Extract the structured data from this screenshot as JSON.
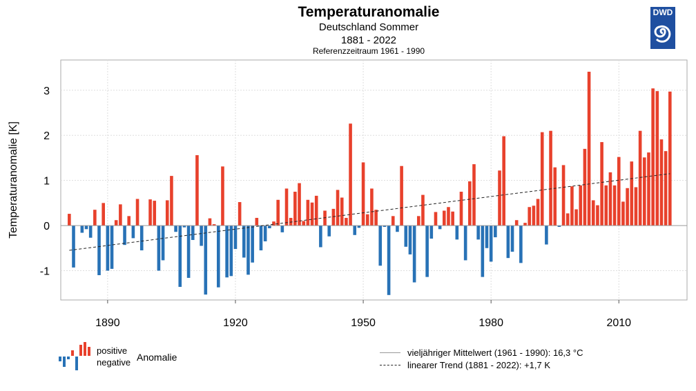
{
  "chart_data": {
    "type": "bar",
    "title": "Temperaturanomalie",
    "subtitle": [
      "Deutschland Sommer",
      "1881 - 2022",
      "Referenzzeitraum 1961 - 1990"
    ],
    "xlabel": "",
    "ylabel": "Temperaturanomalie [K]",
    "xlim": [
      1879,
      2026
    ],
    "ylim": [
      -1.65,
      3.67
    ],
    "xticks": [
      1890,
      1920,
      1950,
      1980,
      2010
    ],
    "yticks": [
      -1,
      0,
      1,
      2,
      3
    ],
    "grid": true,
    "x_start": 1881,
    "values": [
      0.26,
      -0.93,
      0,
      -0.16,
      -0.08,
      -0.27,
      0.35,
      -1.1,
      0.5,
      -1.0,
      -0.96,
      0.12,
      0.47,
      -0.43,
      0.21,
      -0.28,
      0.59,
      -0.55,
      0,
      0.58,
      0.55,
      -1.0,
      -0.77,
      0.56,
      1.1,
      -0.14,
      -1.36,
      -0.04,
      -1.16,
      -0.32,
      1.56,
      -0.45,
      -1.53,
      0.16,
      0.03,
      -1.37,
      1.31,
      -1.15,
      -1.12,
      -0.52,
      0.52,
      -0.71,
      -1.09,
      -0.82,
      0.17,
      -0.55,
      -0.35,
      -0.06,
      0.09,
      0.57,
      -0.15,
      0.82,
      0.17,
      0.75,
      0.94,
      0.1,
      0.57,
      0.51,
      0.66,
      -0.48,
      0.33,
      -0.24,
      0.37,
      0.79,
      0.62,
      0.17,
      2.26,
      -0.21,
      -0.05,
      1.4,
      0.25,
      0.82,
      0.35,
      -0.89,
      -0.03,
      -1.54,
      0.21,
      -0.14,
      1.32,
      -0.47,
      -0.64,
      -1.26,
      0.21,
      0.68,
      -1.14,
      -0.29,
      0.3,
      -0.08,
      0.33,
      0.41,
      0.31,
      -0.31,
      0.75,
      -0.77,
      0.98,
      1.36,
      -0.31,
      -1.14,
      -0.5,
      -0.8,
      -0.26,
      1.22,
      1.98,
      -0.72,
      -0.58,
      0.12,
      -0.83,
      0.06,
      0.41,
      0.44,
      0.59,
      2.07,
      -0.42,
      2.1,
      1.29,
      -0.03,
      1.34,
      0.27,
      0.87,
      0.36,
      0.89,
      1.7,
      3.41,
      0.56,
      0.45,
      1.85,
      0.89,
      1.18,
      0.89,
      1.52,
      0.53,
      0.83,
      1.42,
      0.85,
      2.1,
      1.51,
      1.62,
      3.04,
      2.98,
      1.91,
      1.65,
      2.97
    ],
    "trend": {
      "x": [
        1881,
        2022
      ],
      "y": [
        -0.55,
        1.15
      ]
    },
    "colors": {
      "positive": "#e8412c",
      "negative": "#2872b6"
    },
    "legend": {
      "positive": "positive",
      "negative": "negative",
      "anomaly": "Anomalie",
      "mean": "vieljähriger Mittelwert (1961 - 1990): 16,3 °C",
      "trend": "linearer Trend (1881 - 2022): +1,7 K"
    }
  },
  "logo": {
    "text": "DWD"
  }
}
